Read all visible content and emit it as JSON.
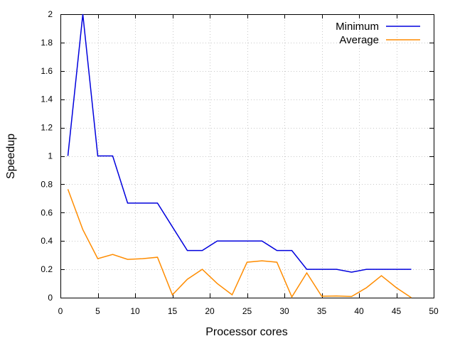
{
  "chart_data": {
    "type": "line",
    "title": "",
    "xlabel": "Processor cores",
    "ylabel": "Speedup",
    "xlim": [
      0,
      50
    ],
    "ylim": [
      0,
      2
    ],
    "x_ticks": [
      0,
      5,
      10,
      15,
      20,
      25,
      30,
      35,
      40,
      45,
      50
    ],
    "y_ticks": [
      0,
      0.2,
      0.4,
      0.6,
      0.8,
      1,
      1.2,
      1.4,
      1.6,
      1.8,
      2
    ],
    "x_tick_labels": [
      "0",
      "5",
      "10",
      "15",
      "20",
      "25",
      "30",
      "35",
      "40",
      "45",
      "50"
    ],
    "y_tick_labels": [
      "0",
      "0.2",
      "0.4",
      "0.6",
      "0.8",
      "1",
      "1.2",
      "1.4",
      "1.6",
      "1.8",
      "2"
    ],
    "grid": true,
    "legend_position": "top-right",
    "x": [
      1,
      3,
      5,
      7,
      9,
      11,
      13,
      15,
      17,
      19,
      21,
      23,
      25,
      27,
      29,
      31,
      33,
      35,
      37,
      39,
      41,
      43,
      45,
      47
    ],
    "series": [
      {
        "name": "Minimum",
        "color": "#0000dd",
        "values": [
          1,
          2,
          1,
          1,
          0.667,
          0.667,
          0.667,
          0.5,
          0.333,
          0.333,
          0.4,
          0.4,
          0.4,
          0.4,
          0.333,
          0.333,
          0.2,
          0.2,
          0.2,
          0.18,
          0.2,
          0.2,
          0.2,
          0.2
        ]
      },
      {
        "name": "Average",
        "color": "#ff8c00",
        "values": [
          0.765,
          0.48,
          0.275,
          0.305,
          0.27,
          0.275,
          0.285,
          0.02,
          0.13,
          0.2,
          0.1,
          0.02,
          0.25,
          0.26,
          0.25,
          0.005,
          0.175,
          0.01,
          0.012,
          0.008,
          0.07,
          0.155,
          0.07,
          0.0
        ]
      }
    ]
  }
}
